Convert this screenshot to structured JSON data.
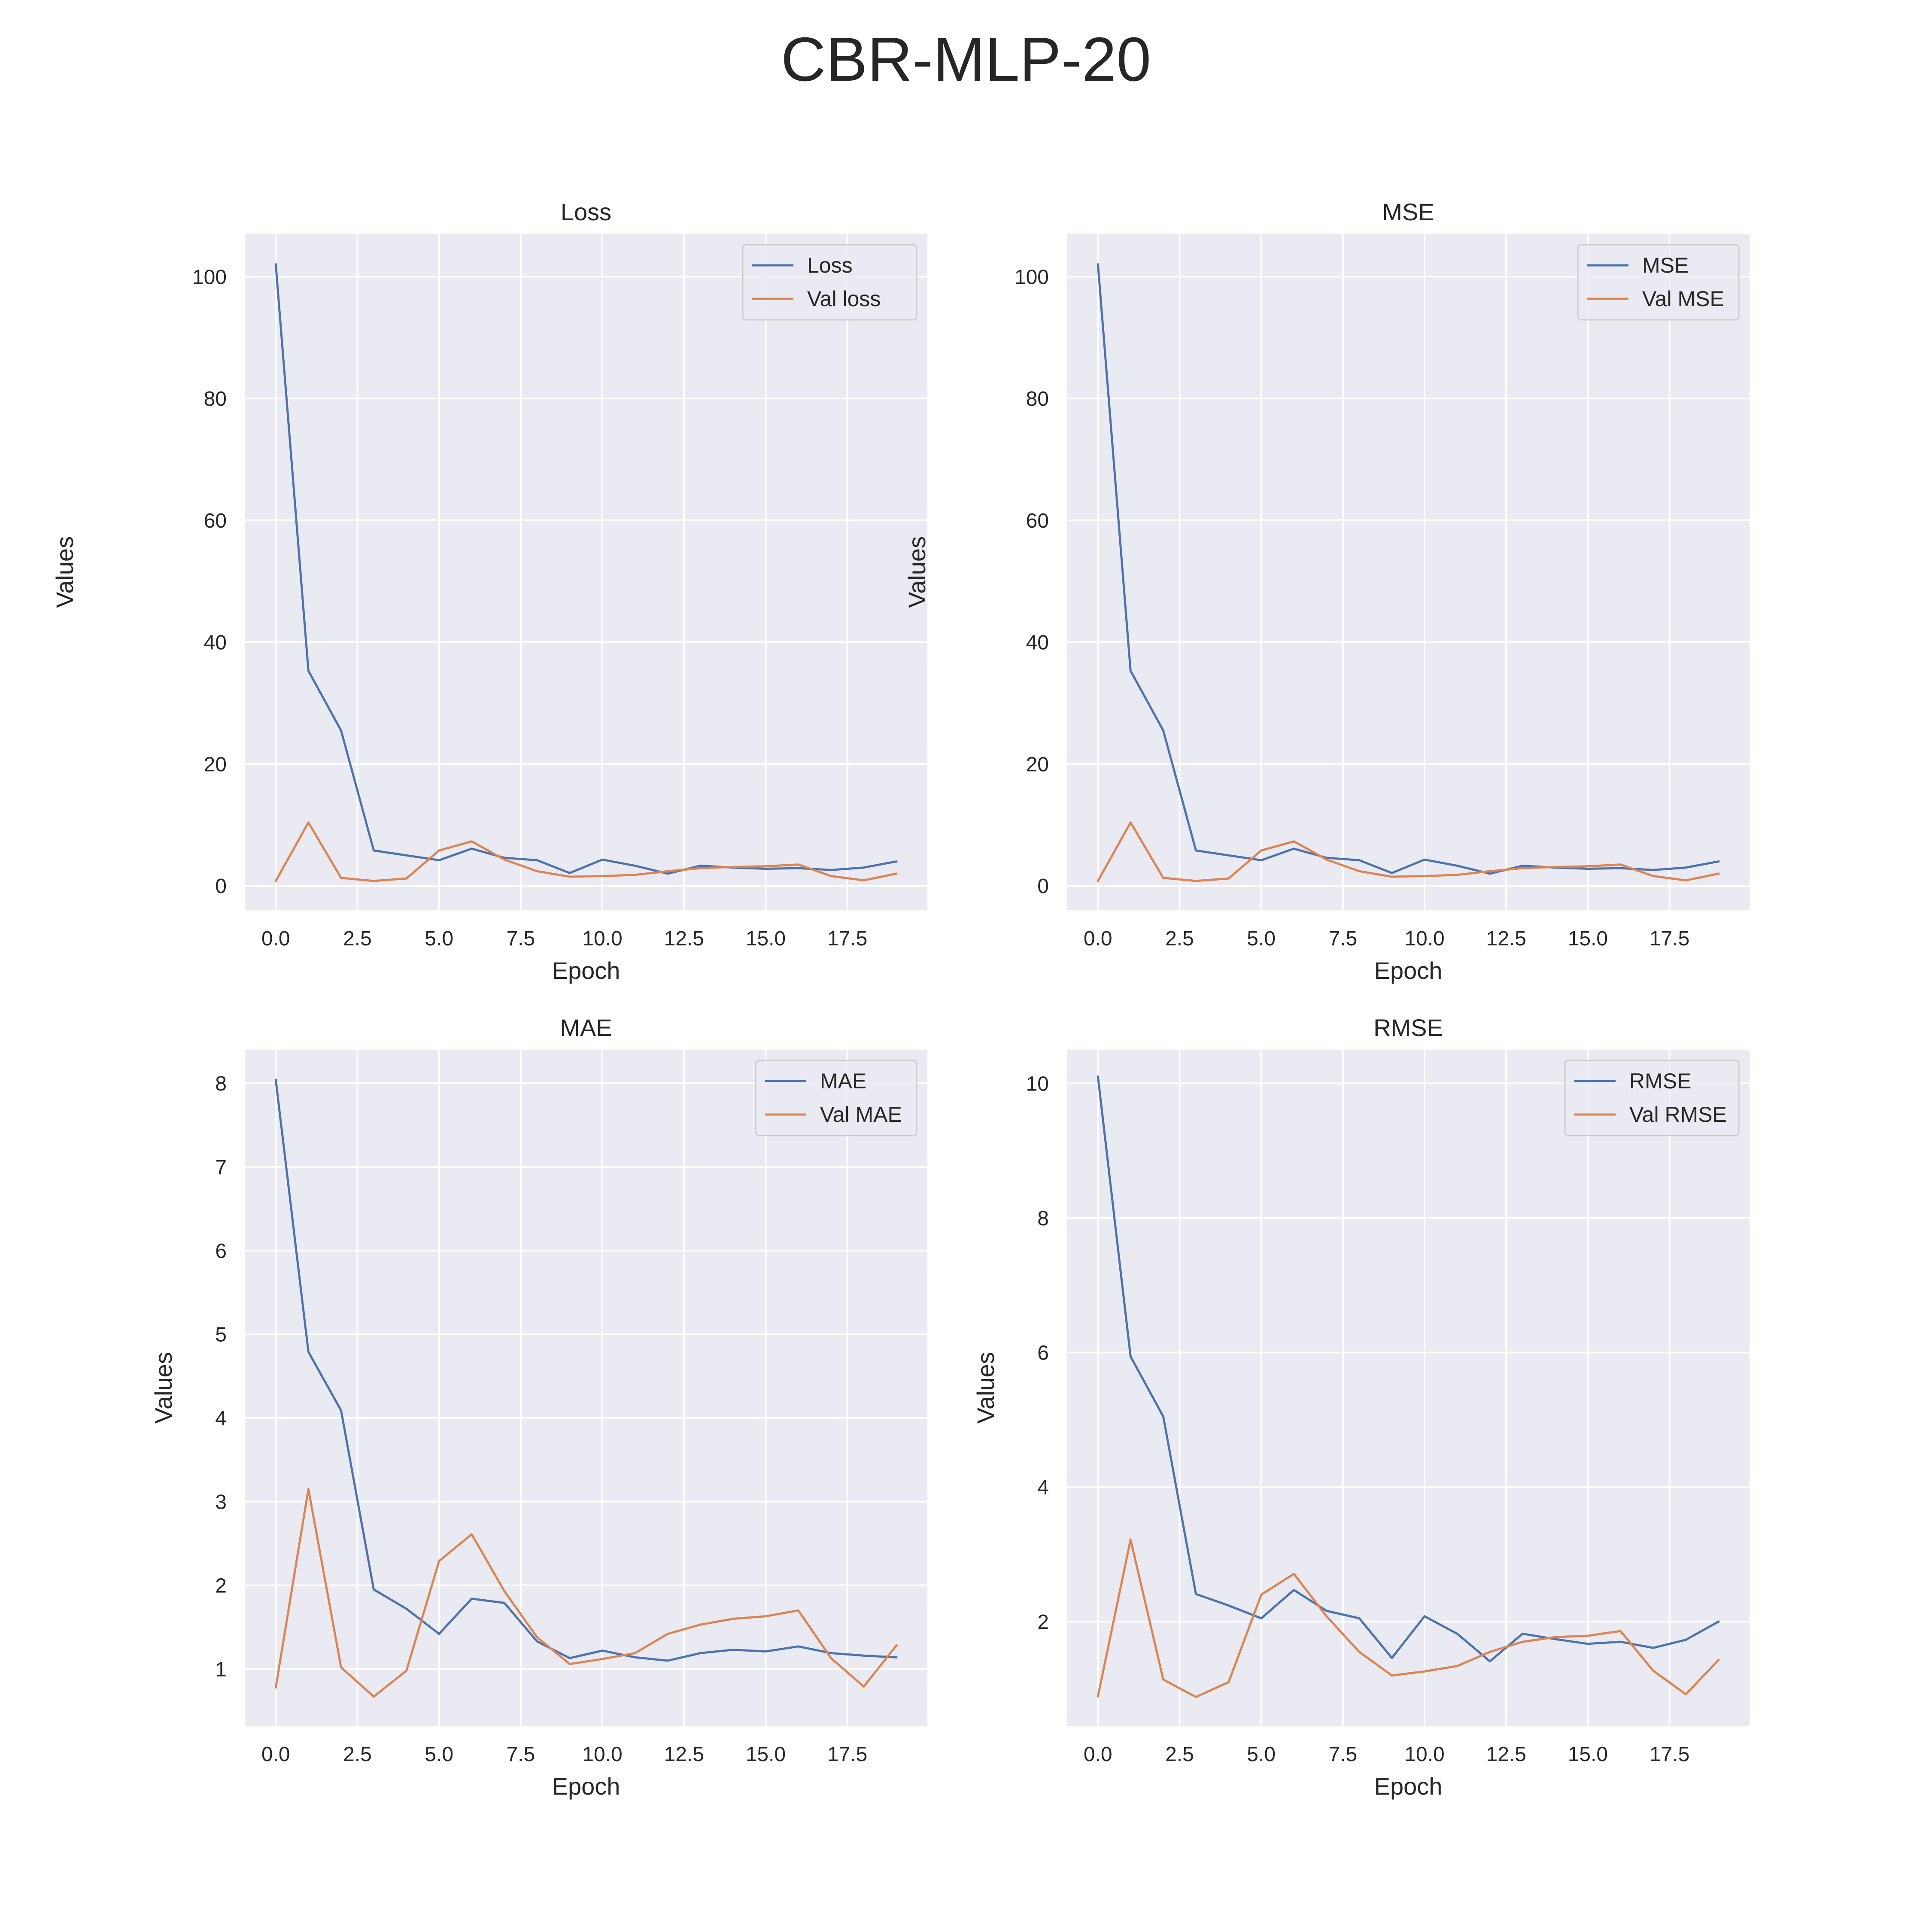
{
  "suptitle": "CBR-MLP-20",
  "colors": {
    "train": "#4c72b0",
    "val": "#dd8452",
    "panel_bg": "#eaeaf2",
    "grid": "#ffffff"
  },
  "chart_data": [
    {
      "type": "line",
      "title": "Loss",
      "xlabel": "Epoch",
      "ylabel": "Values",
      "xlim": [
        -0.95,
        19.95
      ],
      "ylim": [
        -4.0,
        107.0
      ],
      "xticks": [
        0.0,
        2.5,
        5.0,
        7.5,
        10.0,
        12.5,
        15.0,
        17.5
      ],
      "xtick_labels": [
        "0.0",
        "2.5",
        "5.0",
        "7.5",
        "10.0",
        "12.5",
        "15.0",
        "17.5"
      ],
      "yticks": [
        0,
        20,
        40,
        60,
        80,
        100
      ],
      "ytick_labels": [
        "0",
        "20",
        "40",
        "60",
        "80",
        "100"
      ],
      "legend": "top-right",
      "x": [
        0,
        1,
        2,
        3,
        4,
        5,
        6,
        7,
        8,
        9,
        10,
        11,
        12,
        13,
        14,
        15,
        16,
        17,
        18,
        19
      ],
      "series": [
        {
          "name": "Loss",
          "values": [
            102.0,
            35.3,
            25.5,
            5.8,
            5.0,
            4.2,
            6.1,
            4.6,
            4.2,
            2.1,
            4.3,
            3.3,
            2.0,
            3.3,
            3.0,
            2.8,
            2.9,
            2.6,
            3.0,
            4.0
          ]
        },
        {
          "name": "Val loss",
          "values": [
            0.8,
            10.4,
            1.3,
            0.8,
            1.2,
            5.8,
            7.3,
            4.3,
            2.4,
            1.5,
            1.6,
            1.8,
            2.4,
            2.9,
            3.1,
            3.2,
            3.5,
            1.6,
            0.9,
            2.0
          ]
        }
      ]
    },
    {
      "type": "line",
      "title": "MSE",
      "xlabel": "Epoch",
      "ylabel": "Values",
      "xlim": [
        -0.95,
        19.95
      ],
      "ylim": [
        -4.0,
        107.0
      ],
      "xticks": [
        0.0,
        2.5,
        5.0,
        7.5,
        10.0,
        12.5,
        15.0,
        17.5
      ],
      "xtick_labels": [
        "0.0",
        "2.5",
        "5.0",
        "7.5",
        "10.0",
        "12.5",
        "15.0",
        "17.5"
      ],
      "yticks": [
        0,
        20,
        40,
        60,
        80,
        100
      ],
      "ytick_labels": [
        "0",
        "20",
        "40",
        "60",
        "80",
        "100"
      ],
      "legend": "top-right",
      "x": [
        0,
        1,
        2,
        3,
        4,
        5,
        6,
        7,
        8,
        9,
        10,
        11,
        12,
        13,
        14,
        15,
        16,
        17,
        18,
        19
      ],
      "series": [
        {
          "name": "MSE",
          "values": [
            102.0,
            35.3,
            25.5,
            5.8,
            5.0,
            4.2,
            6.1,
            4.6,
            4.2,
            2.1,
            4.3,
            3.3,
            2.0,
            3.3,
            3.0,
            2.8,
            2.9,
            2.6,
            3.0,
            4.0
          ]
        },
        {
          "name": "Val MSE",
          "values": [
            0.8,
            10.4,
            1.3,
            0.8,
            1.2,
            5.8,
            7.3,
            4.3,
            2.4,
            1.5,
            1.6,
            1.8,
            2.4,
            2.9,
            3.1,
            3.2,
            3.5,
            1.6,
            0.9,
            2.0
          ]
        }
      ]
    },
    {
      "type": "line",
      "title": "MAE",
      "xlabel": "Epoch",
      "ylabel": "Values",
      "xlim": [
        -0.95,
        19.95
      ],
      "ylim": [
        0.32,
        8.4
      ],
      "xticks": [
        0.0,
        2.5,
        5.0,
        7.5,
        10.0,
        12.5,
        15.0,
        17.5
      ],
      "xtick_labels": [
        "0.0",
        "2.5",
        "5.0",
        "7.5",
        "10.0",
        "12.5",
        "15.0",
        "17.5"
      ],
      "yticks": [
        1,
        2,
        3,
        4,
        5,
        6,
        7,
        8
      ],
      "ytick_labels": [
        "1",
        "2",
        "3",
        "4",
        "5",
        "6",
        "7",
        "8"
      ],
      "legend": "top-right",
      "x": [
        0,
        1,
        2,
        3,
        4,
        5,
        6,
        7,
        8,
        9,
        10,
        11,
        12,
        13,
        14,
        15,
        16,
        17,
        18,
        19
      ],
      "series": [
        {
          "name": "MAE",
          "values": [
            8.04,
            4.79,
            4.09,
            1.95,
            1.72,
            1.42,
            1.84,
            1.79,
            1.33,
            1.13,
            1.22,
            1.14,
            1.1,
            1.19,
            1.23,
            1.21,
            1.27,
            1.19,
            1.16,
            1.14
          ]
        },
        {
          "name": "Val MAE",
          "values": [
            0.78,
            3.15,
            1.02,
            0.67,
            0.98,
            2.29,
            2.61,
            1.93,
            1.38,
            1.06,
            1.12,
            1.19,
            1.42,
            1.53,
            1.6,
            1.63,
            1.7,
            1.13,
            0.79,
            1.28
          ]
        }
      ]
    },
    {
      "type": "line",
      "title": "RMSE",
      "xlabel": "Epoch",
      "ylabel": "Values",
      "xlim": [
        -0.95,
        19.95
      ],
      "ylim": [
        0.45,
        10.5
      ],
      "xticks": [
        0.0,
        2.5,
        5.0,
        7.5,
        10.0,
        12.5,
        15.0,
        17.5
      ],
      "xtick_labels": [
        "0.0",
        "2.5",
        "5.0",
        "7.5",
        "10.0",
        "12.5",
        "15.0",
        "17.5"
      ],
      "yticks": [
        2,
        4,
        6,
        8,
        10
      ],
      "ytick_labels": [
        "2",
        "4",
        "6",
        "8",
        "10"
      ],
      "legend": "top-right",
      "x": [
        0,
        1,
        2,
        3,
        4,
        5,
        6,
        7,
        8,
        9,
        10,
        11,
        12,
        13,
        14,
        15,
        16,
        17,
        18,
        19
      ],
      "series": [
        {
          "name": "RMSE",
          "values": [
            10.1,
            5.94,
            5.05,
            2.41,
            2.24,
            2.05,
            2.47,
            2.16,
            2.05,
            1.46,
            2.08,
            1.82,
            1.41,
            1.82,
            1.74,
            1.67,
            1.7,
            1.61,
            1.73,
            2.0
          ]
        },
        {
          "name": "Val RMSE",
          "values": [
            0.89,
            3.22,
            1.14,
            0.88,
            1.1,
            2.4,
            2.71,
            2.08,
            1.55,
            1.2,
            1.26,
            1.34,
            1.55,
            1.7,
            1.77,
            1.79,
            1.86,
            1.27,
            0.92,
            1.43
          ]
        }
      ]
    }
  ]
}
